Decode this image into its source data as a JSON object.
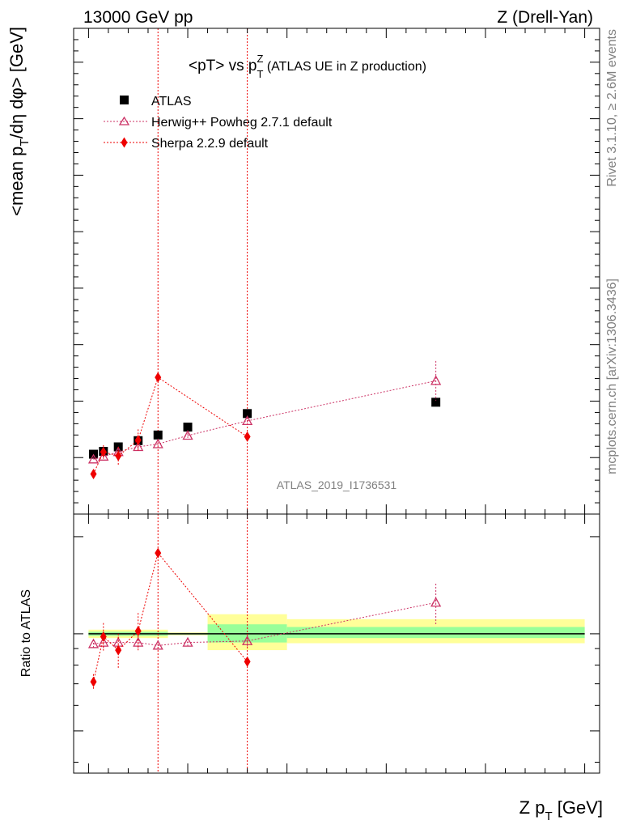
{
  "header": {
    "left": "13000 GeV pp",
    "right": "Z (Drell-Yan)"
  },
  "side": {
    "rivet": "Rivet 3.1.10, ≥ 2.6M events",
    "mcplots": "mcplots.cern.ch [arXiv:1306.3436]"
  },
  "chart_data": [
    {
      "type": "scatter",
      "title": "<pT> vs p_T^Z (ATLAS UE in Z production)",
      "ylabel": "<mean p_T/dη dφ> [GeV]",
      "xlabel": "Z p_T [GeV]",
      "analysis_label": "ATLAS_2019_I1736531",
      "xlim": [
        -15,
        515
      ],
      "ylim": [
        0,
        8.6
      ],
      "yticks": [
        0,
        1,
        2,
        3,
        4,
        5,
        6,
        7,
        8
      ],
      "legend_position": "top-left",
      "series": [
        {
          "name": "ATLAS",
          "marker": "square",
          "color": "#000000",
          "x": [
            5,
            15,
            30,
            50,
            70,
            100,
            160,
            350
          ],
          "y": [
            1.06,
            1.11,
            1.19,
            1.3,
            1.4,
            1.54,
            1.78,
            1.98
          ]
        },
        {
          "name": "Herwig++ Powheg 2.7.1 default",
          "marker": "open-triangle",
          "color": "#cc3366",
          "x": [
            5,
            15,
            30,
            50,
            70,
            100,
            160,
            350
          ],
          "y": [
            0.97,
            1.02,
            1.1,
            1.19,
            1.24,
            1.39,
            1.65,
            2.36
          ],
          "yerr": [
            0.03,
            0.05,
            0.05,
            0.05,
            0.04,
            0.04,
            0.06,
            0.35
          ]
        },
        {
          "name": "Sherpa 2.2.9 default",
          "marker": "diamond",
          "color": "#ee0000",
          "x": [
            5,
            15,
            30,
            50,
            70,
            160
          ],
          "y": [
            0.71,
            1.1,
            1.03,
            1.31,
            2.42,
            1.37
          ],
          "yerr": [
            0.04,
            0.12,
            0.16,
            0.19,
            0.03,
            0.03
          ]
        }
      ],
      "vertical_lines_x": [
        70,
        160
      ]
    },
    {
      "type": "scatter",
      "ylabel": "Ratio to ATLAS",
      "xlabel": "Z p_T [GeV]",
      "xlim": [
        -15,
        515
      ],
      "ylim": [
        0.37,
        2.35
      ],
      "log_y": true,
      "yticks": [
        0.5,
        1,
        2
      ],
      "xticks": [
        0,
        200,
        400
      ],
      "uncertainty_bands": [
        {
          "x": [
            0,
            80
          ],
          "stat": [
            0.985,
            1.015
          ],
          "total": [
            0.97,
            1.03
          ]
        },
        {
          "x": [
            80,
            120
          ],
          "stat": [
            0.995,
            1.005
          ],
          "total": [
            0.99,
            1.01
          ]
        },
        {
          "x": [
            120,
            200
          ],
          "stat": [
            0.94,
            1.07
          ],
          "total": [
            0.89,
            1.15
          ]
        },
        {
          "x": [
            200,
            500
          ],
          "stat": [
            0.97,
            1.05
          ],
          "total": [
            0.935,
            1.11
          ]
        }
      ],
      "series": [
        {
          "name": "Herwig++ Powheg 2.7.1 default",
          "marker": "open-triangle",
          "color": "#cc3366",
          "x": [
            5,
            15,
            30,
            50,
            70,
            100,
            160,
            350
          ],
          "y": [
            0.93,
            0.94,
            0.94,
            0.94,
            0.92,
            0.94,
            0.95,
            1.25
          ],
          "yerr": [
            0.03,
            0.04,
            0.04,
            0.04,
            0.03,
            0.03,
            0.04,
            0.18
          ]
        },
        {
          "name": "Sherpa 2.2.9 default",
          "marker": "diamond",
          "color": "#ee0000",
          "x": [
            5,
            15,
            30,
            50,
            70,
            160
          ],
          "y": [
            0.71,
            0.98,
            0.89,
            1.02,
            1.78,
            0.82
          ],
          "yerr": [
            0.04,
            0.1,
            0.11,
            0.14,
            0.02,
            0.02
          ]
        }
      ],
      "vertical_lines_x": [
        70,
        160
      ]
    }
  ]
}
